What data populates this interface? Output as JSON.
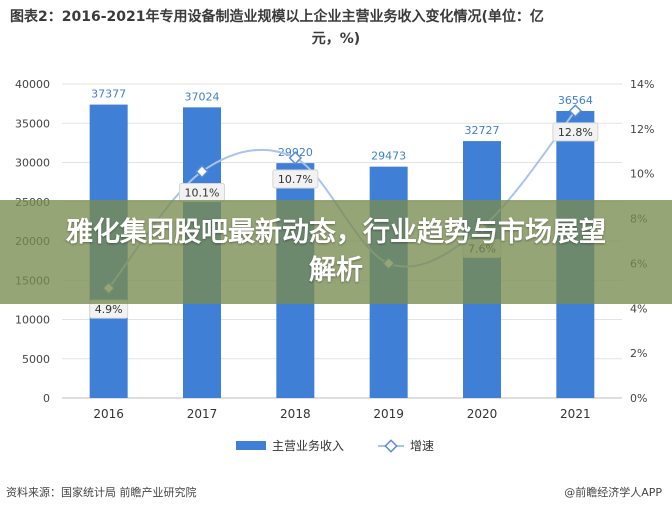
{
  "header": {
    "title_line1": "图表2：2016-2021年专用设备制造业规模以上企业主营业务收入变化情况(单位：亿",
    "title_line2": "元，%)"
  },
  "banner": {
    "text": "雅化集团股吧最新动态，行业趋势与市场展望解析"
  },
  "footer": {
    "source": "资料来源：国家统计局 前瞻产业研究院",
    "logo_text": "@前瞻经济学人APP"
  },
  "colors": {
    "bar": "#3f7fd6",
    "line": "#a8c4ec",
    "marker": "#5a8fd8",
    "grid": "#e3e3e3"
  },
  "chart_data": {
    "type": "bar",
    "categories": [
      "2016",
      "2017",
      "2018",
      "2019",
      "2020",
      "2021"
    ],
    "series": [
      {
        "name": "主营业务收入",
        "type": "bar",
        "axis": "left",
        "values": [
          37377,
          37024,
          29920,
          29473,
          32727,
          36564
        ],
        "labels": [
          "37377",
          "37024",
          "29920",
          "29473",
          "32727",
          "36564"
        ]
      },
      {
        "name": "增速",
        "type": "line",
        "axis": "right",
        "values": [
          4.9,
          10.1,
          10.7,
          6.0,
          7.6,
          12.8
        ],
        "labels": [
          "4.9%",
          "10.1%",
          "10.7%",
          "",
          "7.6%",
          "12.8%"
        ]
      }
    ],
    "ylim_left": [
      0,
      40000
    ],
    "yticks_left": [
      "0",
      "5000",
      "10000",
      "15000",
      "20000",
      "25000",
      "30000",
      "35000",
      "40000"
    ],
    "ylim_right": [
      0,
      14
    ],
    "yticks_right": [
      "0%",
      "2%",
      "4%",
      "6%",
      "8%",
      "10%",
      "12%",
      "14%"
    ],
    "legend": [
      "主营业务收入",
      "增速"
    ],
    "legend_position": "bottom",
    "grid": true
  }
}
